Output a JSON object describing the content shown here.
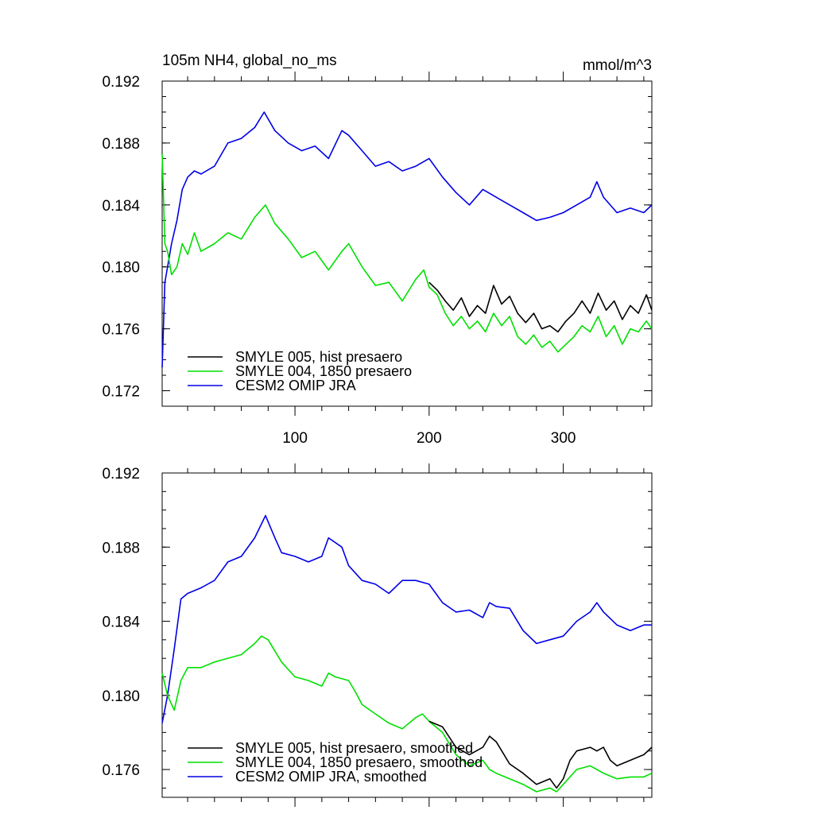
{
  "figure": {
    "header_left": "105m NH4, global_no_ms",
    "header_right": "mmol/m^3"
  },
  "chart_data": [
    {
      "type": "line",
      "title": "105m NH4, global_no_ms",
      "units": "mmol/m^3",
      "xlim": [
        1,
        366
      ],
      "ylim": [
        0.171,
        0.192
      ],
      "x_ticks": [
        100,
        200,
        300
      ],
      "y_ticks": [
        0.172,
        0.176,
        0.18,
        0.184,
        0.188,
        0.192
      ],
      "x_tick_labels": [
        "100",
        "200",
        "300"
      ],
      "y_tick_labels": [
        "0.172",
        "0.176",
        "0.180",
        "0.184",
        "0.188",
        "0.192"
      ],
      "grid": false,
      "legend_position": "bottom-left",
      "series": [
        {
          "name": "SMYLE 005, hist presaero",
          "color": "#000000",
          "x": [
            200,
            206,
            212,
            218,
            224,
            230,
            236,
            242,
            248,
            254,
            260,
            266,
            272,
            278,
            284,
            290,
            296,
            302,
            308,
            314,
            320,
            326,
            332,
            338,
            344,
            350,
            356,
            362,
            366
          ],
          "values": [
            0.179,
            0.1785,
            0.1778,
            0.1772,
            0.178,
            0.1768,
            0.1775,
            0.177,
            0.1788,
            0.1776,
            0.1781,
            0.177,
            0.1764,
            0.177,
            0.176,
            0.1762,
            0.1758,
            0.1765,
            0.177,
            0.1778,
            0.177,
            0.1783,
            0.1772,
            0.1778,
            0.1766,
            0.1775,
            0.177,
            0.1782,
            0.1772
          ]
        },
        {
          "name": "SMYLE 004, 1850 presaero",
          "color": "#00e000",
          "x": [
            1,
            3,
            5,
            8,
            12,
            16,
            20,
            25,
            30,
            40,
            50,
            60,
            70,
            78,
            85,
            95,
            105,
            115,
            125,
            135,
            140,
            150,
            160,
            170,
            180,
            190,
            196,
            200,
            206,
            212,
            218,
            224,
            230,
            236,
            242,
            248,
            254,
            260,
            266,
            272,
            278,
            284,
            290,
            296,
            302,
            308,
            314,
            320,
            326,
            332,
            338,
            344,
            350,
            356,
            362,
            366
          ],
          "values": [
            0.1873,
            0.1815,
            0.181,
            0.1795,
            0.18,
            0.1815,
            0.1808,
            0.1822,
            0.181,
            0.1815,
            0.1822,
            0.1818,
            0.1832,
            0.184,
            0.1828,
            0.1818,
            0.1806,
            0.181,
            0.1798,
            0.181,
            0.1815,
            0.18,
            0.1788,
            0.179,
            0.1778,
            0.1792,
            0.1798,
            0.1787,
            0.1782,
            0.177,
            0.1762,
            0.1768,
            0.176,
            0.1765,
            0.1758,
            0.177,
            0.1762,
            0.1768,
            0.1755,
            0.175,
            0.1756,
            0.1748,
            0.1752,
            0.1745,
            0.175,
            0.1755,
            0.1762,
            0.1758,
            0.1768,
            0.1755,
            0.1762,
            0.175,
            0.176,
            0.1758,
            0.1765,
            0.176
          ]
        },
        {
          "name": "CESM2 OMIP JRA",
          "color": "#0000e6",
          "x": [
            1,
            3,
            5,
            8,
            12,
            16,
            20,
            25,
            30,
            40,
            50,
            60,
            70,
            77,
            85,
            95,
            105,
            115,
            125,
            135,
            140,
            150,
            160,
            170,
            180,
            190,
            200,
            210,
            220,
            230,
            240,
            250,
            260,
            270,
            280,
            290,
            300,
            310,
            320,
            325,
            330,
            340,
            350,
            360,
            366
          ],
          "values": [
            0.1735,
            0.179,
            0.18,
            0.1815,
            0.183,
            0.185,
            0.1858,
            0.1862,
            0.186,
            0.1865,
            0.188,
            0.1883,
            0.189,
            0.19,
            0.1888,
            0.188,
            0.1875,
            0.1878,
            0.187,
            0.1888,
            0.1885,
            0.1875,
            0.1865,
            0.1868,
            0.1862,
            0.1865,
            0.187,
            0.1858,
            0.1848,
            0.184,
            0.185,
            0.1845,
            0.184,
            0.1835,
            0.183,
            0.1832,
            0.1835,
            0.184,
            0.1845,
            0.1855,
            0.1845,
            0.1835,
            0.1838,
            0.1835,
            0.184
          ]
        }
      ]
    },
    {
      "type": "line",
      "xlim": [
        1,
        366
      ],
      "ylim": [
        0.1745,
        0.192
      ],
      "x_ticks": [
        100,
        200,
        300
      ],
      "y_ticks": [
        0.176,
        0.18,
        0.184,
        0.188,
        0.192
      ],
      "x_tick_labels": [],
      "y_tick_labels": [
        "0.176",
        "0.180",
        "0.184",
        "0.188",
        "0.192"
      ],
      "grid": false,
      "legend_position": "bottom-left",
      "series": [
        {
          "name": "SMYLE 005, hist presaero, smoothed",
          "color": "#000000",
          "x": [
            200,
            210,
            220,
            230,
            240,
            245,
            250,
            260,
            270,
            280,
            290,
            295,
            300,
            305,
            310,
            320,
            325,
            330,
            335,
            340,
            350,
            360,
            366
          ],
          "values": [
            0.1786,
            0.1783,
            0.1772,
            0.1768,
            0.1772,
            0.1778,
            0.1775,
            0.1763,
            0.1758,
            0.1752,
            0.1755,
            0.175,
            0.1755,
            0.1765,
            0.177,
            0.1772,
            0.177,
            0.1772,
            0.1765,
            0.1762,
            0.1765,
            0.1768,
            0.1772
          ]
        },
        {
          "name": "SMYLE 004, 1850 presaero, smoothed",
          "color": "#00e000",
          "x": [
            1,
            5,
            10,
            15,
            20,
            30,
            40,
            50,
            60,
            70,
            75,
            80,
            90,
            100,
            110,
            120,
            125,
            130,
            140,
            145,
            150,
            160,
            170,
            180,
            190,
            195,
            200,
            210,
            220,
            230,
            240,
            245,
            250,
            260,
            270,
            280,
            290,
            295,
            300,
            310,
            320,
            325,
            330,
            340,
            350,
            360,
            366
          ],
          "values": [
            0.1812,
            0.18,
            0.1792,
            0.1808,
            0.1815,
            0.1815,
            0.1818,
            0.182,
            0.1822,
            0.1828,
            0.1832,
            0.183,
            0.1818,
            0.181,
            0.1808,
            0.1805,
            0.1812,
            0.181,
            0.1808,
            0.1802,
            0.1795,
            0.179,
            0.1785,
            0.1782,
            0.1788,
            0.179,
            0.1786,
            0.178,
            0.1768,
            0.1762,
            0.1765,
            0.176,
            0.1758,
            0.1755,
            0.1752,
            0.1748,
            0.175,
            0.1748,
            0.1752,
            0.176,
            0.1762,
            0.176,
            0.1758,
            0.1755,
            0.1756,
            0.1756,
            0.1758
          ]
        },
        {
          "name": "CESM2 OMIP JRA, smoothed",
          "color": "#0000e6",
          "x": [
            1,
            5,
            10,
            15,
            20,
            30,
            40,
            50,
            60,
            70,
            78,
            85,
            90,
            100,
            110,
            120,
            125,
            135,
            140,
            150,
            160,
            170,
            180,
            190,
            200,
            210,
            220,
            230,
            240,
            245,
            250,
            260,
            270,
            280,
            290,
            300,
            310,
            320,
            325,
            330,
            340,
            350,
            360,
            366
          ],
          "values": [
            0.1785,
            0.18,
            0.1825,
            0.1852,
            0.1855,
            0.1858,
            0.1862,
            0.1872,
            0.1875,
            0.1885,
            0.1897,
            0.1885,
            0.1877,
            0.1875,
            0.1872,
            0.1875,
            0.1885,
            0.188,
            0.187,
            0.1862,
            0.186,
            0.1855,
            0.1862,
            0.1862,
            0.186,
            0.185,
            0.1845,
            0.1846,
            0.1842,
            0.185,
            0.1848,
            0.1847,
            0.1835,
            0.1828,
            0.183,
            0.1832,
            0.184,
            0.1845,
            0.185,
            0.1845,
            0.1838,
            0.1835,
            0.1838,
            0.1838
          ]
        }
      ]
    }
  ]
}
